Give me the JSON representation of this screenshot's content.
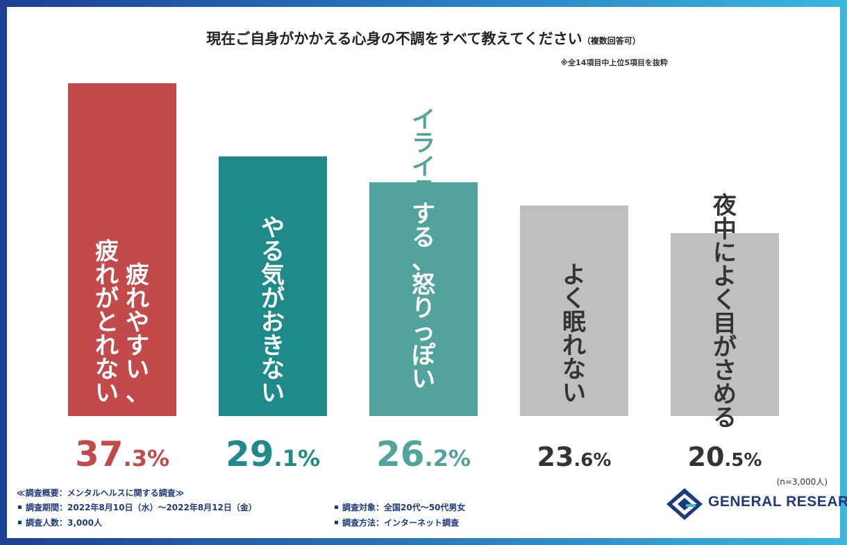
{
  "title": {
    "main": "現在ご自身がかかえる心身の不調をすべて教えてください",
    "sub": "（複数回答可）",
    "note": "※全14項目中上位5項目を抜粋"
  },
  "chart_data": {
    "type": "bar",
    "title": "現在ご自身がかかえる心身の不調をすべて教えてください（複数回答可）",
    "unit": "%",
    "categories": [
      "疲れやすい、疲れがとれない",
      "やる気がおきない",
      "イライラする、怒りっぽい",
      "よく眠れない",
      "夜中によく目がさめる"
    ],
    "values": [
      37.3,
      29.1,
      26.2,
      23.6,
      20.5
    ],
    "colors": [
      "#c24a4a",
      "#1f8a8a",
      "#52a39c",
      "#bfbfbf",
      "#bfbfbf"
    ],
    "label_colors": [
      "#c24a4a",
      "#1f8a8a",
      "#52a39c",
      "#333333",
      "#333333"
    ],
    "bar_label_lines": [
      [
        "疲れやすい、",
        "疲れがとれない"
      ],
      [
        "やる気がおきない"
      ],
      [
        "イライラする、怒りっぽい"
      ],
      [
        "よく眠れない"
      ],
      [
        "夜中によく目がさめる"
      ]
    ],
    "bar_label_colors": [
      "#ffffff",
      "#ffffff",
      "#ffffff",
      "#333333",
      "#333333"
    ],
    "ylim": [
      0,
      37.3
    ],
    "grid": false,
    "legend": "none"
  },
  "footer": {
    "summary": "≪調査概要：メンタルヘルスに関する調査≫",
    "period": "調査期間：2022年8月10日（水）〜2022年8月12日（金）",
    "respondents": "調査人数：3,000人",
    "target": "調査対象：全国20代〜50代男女",
    "method": "調査方法：インターネット調査",
    "n": "(n=3,000人)"
  },
  "logo": {
    "text": "GENERAL RESEARCH",
    "icon": "general-research-logo-icon"
  }
}
